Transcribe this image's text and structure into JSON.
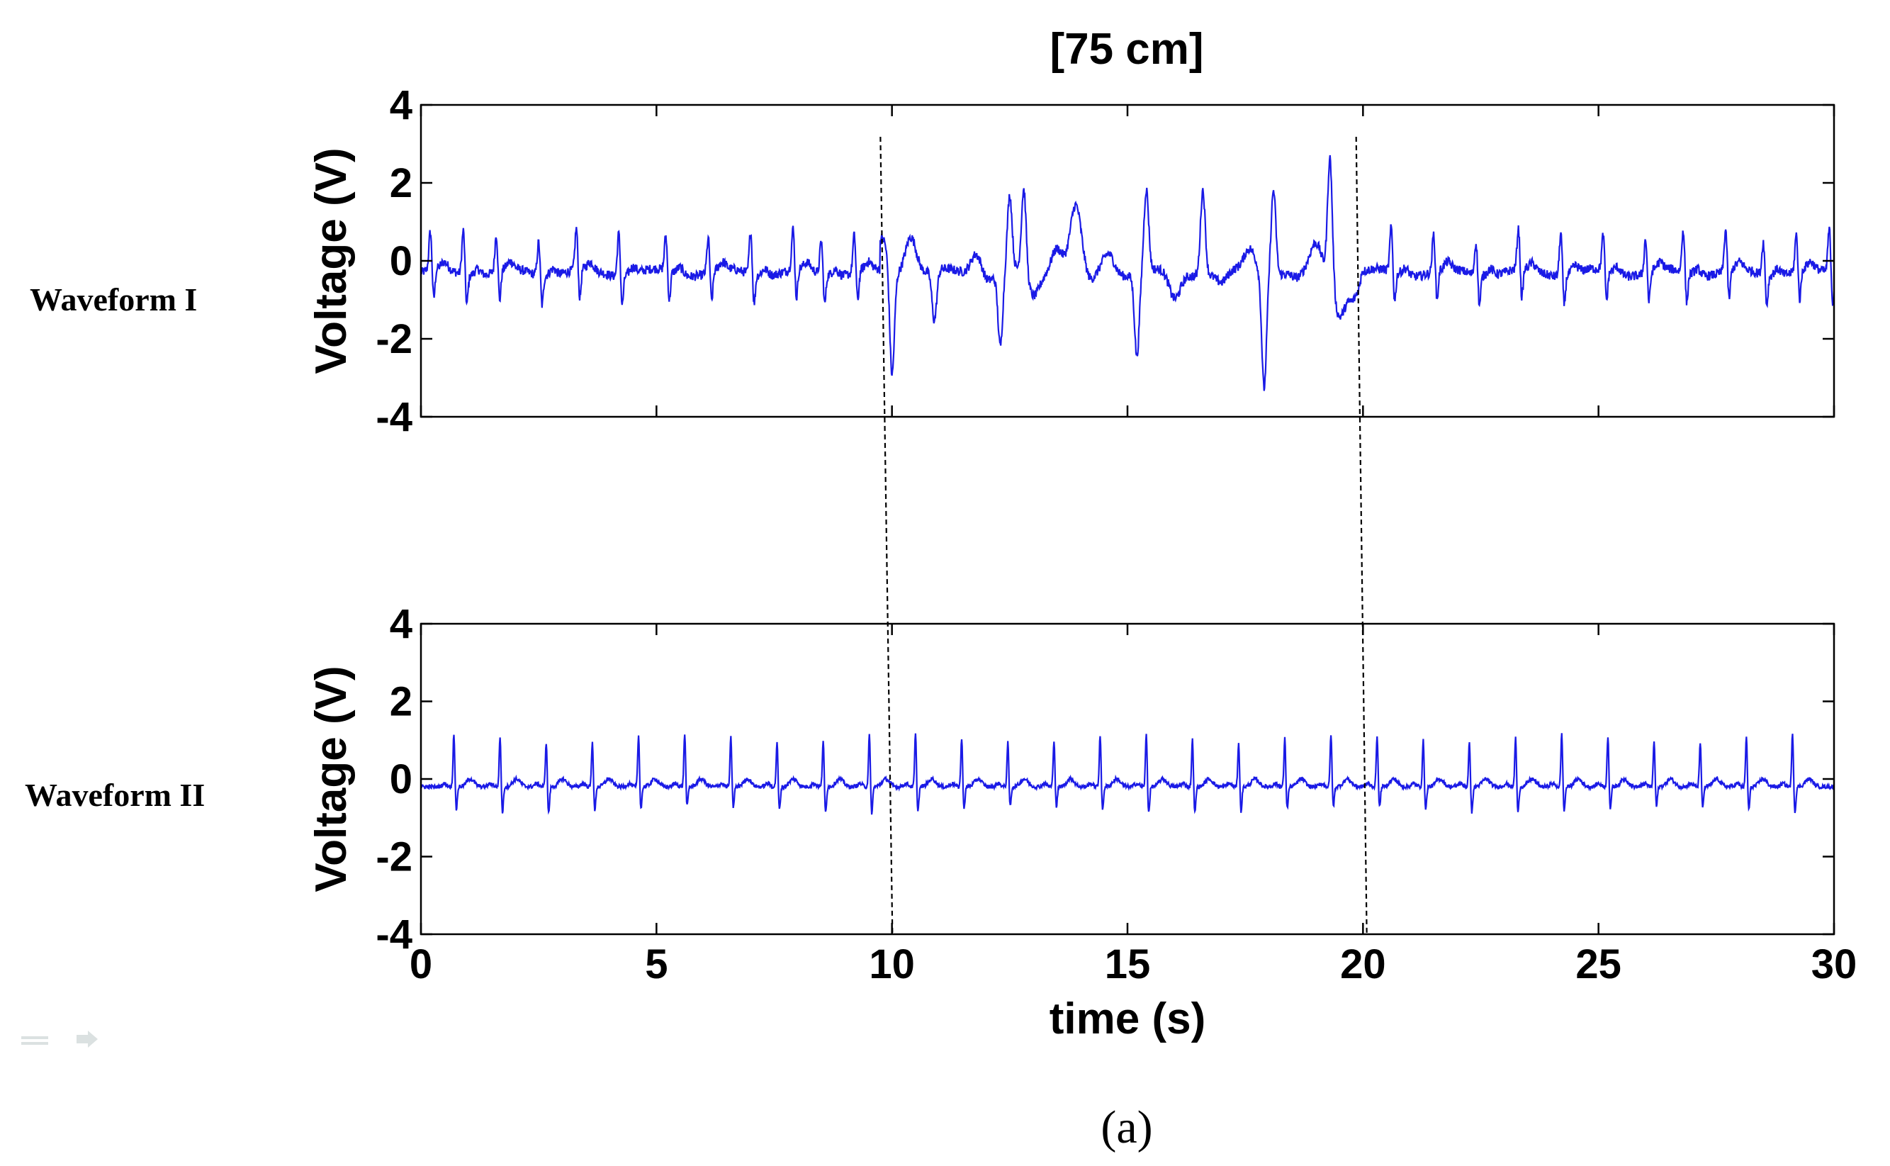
{
  "figure": {
    "title": "[75 cm]",
    "panel_label": "(a)",
    "row_labels": [
      "Waveform I",
      "Waveform II"
    ],
    "line_color": "#1a1ae6",
    "marker_times": [
      9.8,
      19.9
    ]
  },
  "chart_data": [
    {
      "type": "line",
      "title": "[75 cm]",
      "name": "Waveform I",
      "xlabel": "",
      "ylabel": "Voltage (V)",
      "xlim": [
        0,
        30
      ],
      "ylim": [
        -4,
        4
      ],
      "xticks": [
        0,
        5,
        10,
        15,
        20,
        25,
        30
      ],
      "yticks": [
        4,
        2,
        0,
        -2,
        -4
      ],
      "xtick_labels_shown": false,
      "baseline": -0.3,
      "beat_times": [
        0.2,
        0.9,
        1.6,
        2.5,
        3.3,
        4.2,
        5.2,
        6.1,
        7.0,
        7.9,
        8.5,
        9.2
      ],
      "beat_times_after": [
        20.6,
        21.5,
        22.4,
        23.3,
        24.2,
        25.1,
        26.0,
        26.8,
        27.7,
        28.5,
        29.2,
        29.9
      ],
      "noise_amplitude": 0.12,
      "disturbance_window": [
        9.8,
        19.9
      ],
      "disturbance_events": [
        {
          "t": 9.8,
          "v": 0.5
        },
        {
          "t": 10.0,
          "v": -3.1
        },
        {
          "t": 10.4,
          "v": 0.7
        },
        {
          "t": 10.9,
          "v": -1.6
        },
        {
          "t": 11.8,
          "v": 0.3
        },
        {
          "t": 12.0,
          "v": -0.5
        },
        {
          "t": 12.3,
          "v": -2.2
        },
        {
          "t": 12.5,
          "v": 1.6
        },
        {
          "t": 12.8,
          "v": 1.9
        },
        {
          "t": 13.0,
          "v": -0.9
        },
        {
          "t": 13.5,
          "v": 0.4
        },
        {
          "t": 13.9,
          "v": 1.4
        },
        {
          "t": 14.2,
          "v": -0.6
        },
        {
          "t": 14.6,
          "v": 0.2
        },
        {
          "t": 15.2,
          "v": -2.4
        },
        {
          "t": 15.4,
          "v": 1.8
        },
        {
          "t": 16.0,
          "v": -1.0
        },
        {
          "t": 16.6,
          "v": 1.9
        },
        {
          "t": 17.0,
          "v": -0.6
        },
        {
          "t": 17.6,
          "v": 0.3
        },
        {
          "t": 17.9,
          "v": -3.2
        },
        {
          "t": 18.1,
          "v": 1.9
        },
        {
          "t": 18.6,
          "v": -0.5
        },
        {
          "t": 19.0,
          "v": 0.4
        },
        {
          "t": 19.3,
          "v": 2.9
        },
        {
          "t": 19.5,
          "v": -1.3
        },
        {
          "t": 19.8,
          "v": -0.9
        }
      ]
    },
    {
      "type": "line",
      "name": "Waveform II",
      "xlabel": "time (s)",
      "ylabel": "Voltage (V)",
      "xlim": [
        0,
        30
      ],
      "ylim": [
        -4,
        4
      ],
      "xticks": [
        0,
        5,
        10,
        15,
        20,
        25,
        30
      ],
      "yticks": [
        4,
        2,
        0,
        -2,
        -4
      ],
      "xtick_labels_shown": true,
      "baseline": -0.2,
      "beat_period": 0.98,
      "first_beat": 0.7,
      "r_peak": 1.2,
      "s_trough": -0.9,
      "noise_amplitude": 0.05
    }
  ]
}
